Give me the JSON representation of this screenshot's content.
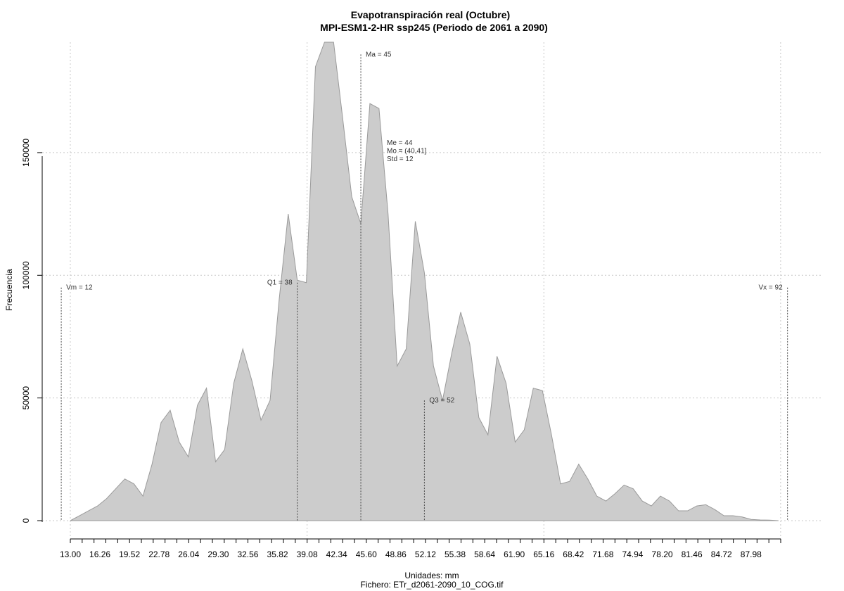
{
  "chart_data": {
    "type": "area",
    "title": "Evapotranspiración real (Octubre)",
    "subtitle": "MPI-ESM1-2-HR ssp245 (Periodo de 2061 a 2090)",
    "xlabel": "Unidades: mm",
    "source": "Fichero: ETr_d2061-2090_10_COG.tif",
    "ylabel": "Frecuencia",
    "xlim": [
      13.0,
      91.25
    ],
    "ylim": [
      0,
      195000
    ],
    "grid": true,
    "fill_color": "#cccccc",
    "line_color": "#9a9a9a",
    "x_ticks": [
      "13.00",
      "16.26",
      "19.52",
      "22.78",
      "26.04",
      "29.30",
      "32.56",
      "35.82",
      "39.08",
      "42.34",
      "45.60",
      "48.86",
      "52.12",
      "55.38",
      "58.64",
      "61.90",
      "65.16",
      "68.42",
      "71.68",
      "74.94",
      "78.20",
      "81.46",
      "84.72",
      "87.98"
    ],
    "y_ticks": [
      "0",
      "50000",
      "100000",
      "150000"
    ],
    "x": [
      13.0,
      14.0,
      15.0,
      16.0,
      17.0,
      18.0,
      19.0,
      20.0,
      21.0,
      22.0,
      23.0,
      24.0,
      25.0,
      26.0,
      27.0,
      28.0,
      29.0,
      30.0,
      31.0,
      32.0,
      33.0,
      34.0,
      35.0,
      36.0,
      37.0,
      38.0,
      39.0,
      40.0,
      41.0,
      42.0,
      43.0,
      44.0,
      45.0,
      46.0,
      47.0,
      48.0,
      49.0,
      50.0,
      51.0,
      52.0,
      53.0,
      54.0,
      55.0,
      56.0,
      57.0,
      58.0,
      59.0,
      60.0,
      61.0,
      62.0,
      63.0,
      64.0,
      65.0,
      66.0,
      67.0,
      68.0,
      69.0,
      70.0,
      71.0,
      72.0,
      73.0,
      74.0,
      75.0,
      76.0,
      77.0,
      78.0,
      79.0,
      80.0,
      81.0,
      82.0,
      83.0,
      84.0,
      85.0,
      86.0,
      87.0,
      88.0,
      89.0,
      90.0,
      91.0
    ],
    "values": [
      0,
      2000,
      4000,
      6000,
      9000,
      13000,
      17000,
      15000,
      10000,
      23000,
      40000,
      45000,
      32000,
      26000,
      47000,
      54000,
      24000,
      29000,
      56000,
      70000,
      57000,
      41000,
      49000,
      90000,
      125000,
      98000,
      97000,
      185000,
      200000,
      195000,
      164000,
      132000,
      121000,
      170000,
      168000,
      125000,
      63000,
      70000,
      122000,
      101000,
      63000,
      49000,
      68000,
      85000,
      72000,
      42000,
      35000,
      67000,
      56000,
      32000,
      37000,
      54000,
      53000,
      35000,
      15000,
      16000,
      23000,
      17000,
      10000,
      8000,
      11000,
      14500,
      13000,
      8000,
      6000,
      10000,
      8000,
      4000,
      4000,
      6000,
      6500,
      4500,
      2000,
      2000,
      1500,
      500,
      300,
      200,
      0
    ],
    "markers": [
      {
        "label": "Vm = 12",
        "x": 12,
        "height": 95000,
        "text_side": "right"
      },
      {
        "label": "Q1 = 38",
        "x": 38,
        "height": 97000,
        "text_side": "left"
      },
      {
        "label": "Ma = 45",
        "x": 45,
        "height": 190000,
        "text_side": "right"
      },
      {
        "label": "Q3 = 52",
        "x": 52,
        "height": 49000,
        "text_side": "right"
      },
      {
        "label": "Vx = 92",
        "x": 92,
        "height": 95000,
        "text_side": "left"
      }
    ],
    "stats_block": [
      "Me = 44",
      "Mo = (40,41]",
      "Std = 12"
    ]
  }
}
